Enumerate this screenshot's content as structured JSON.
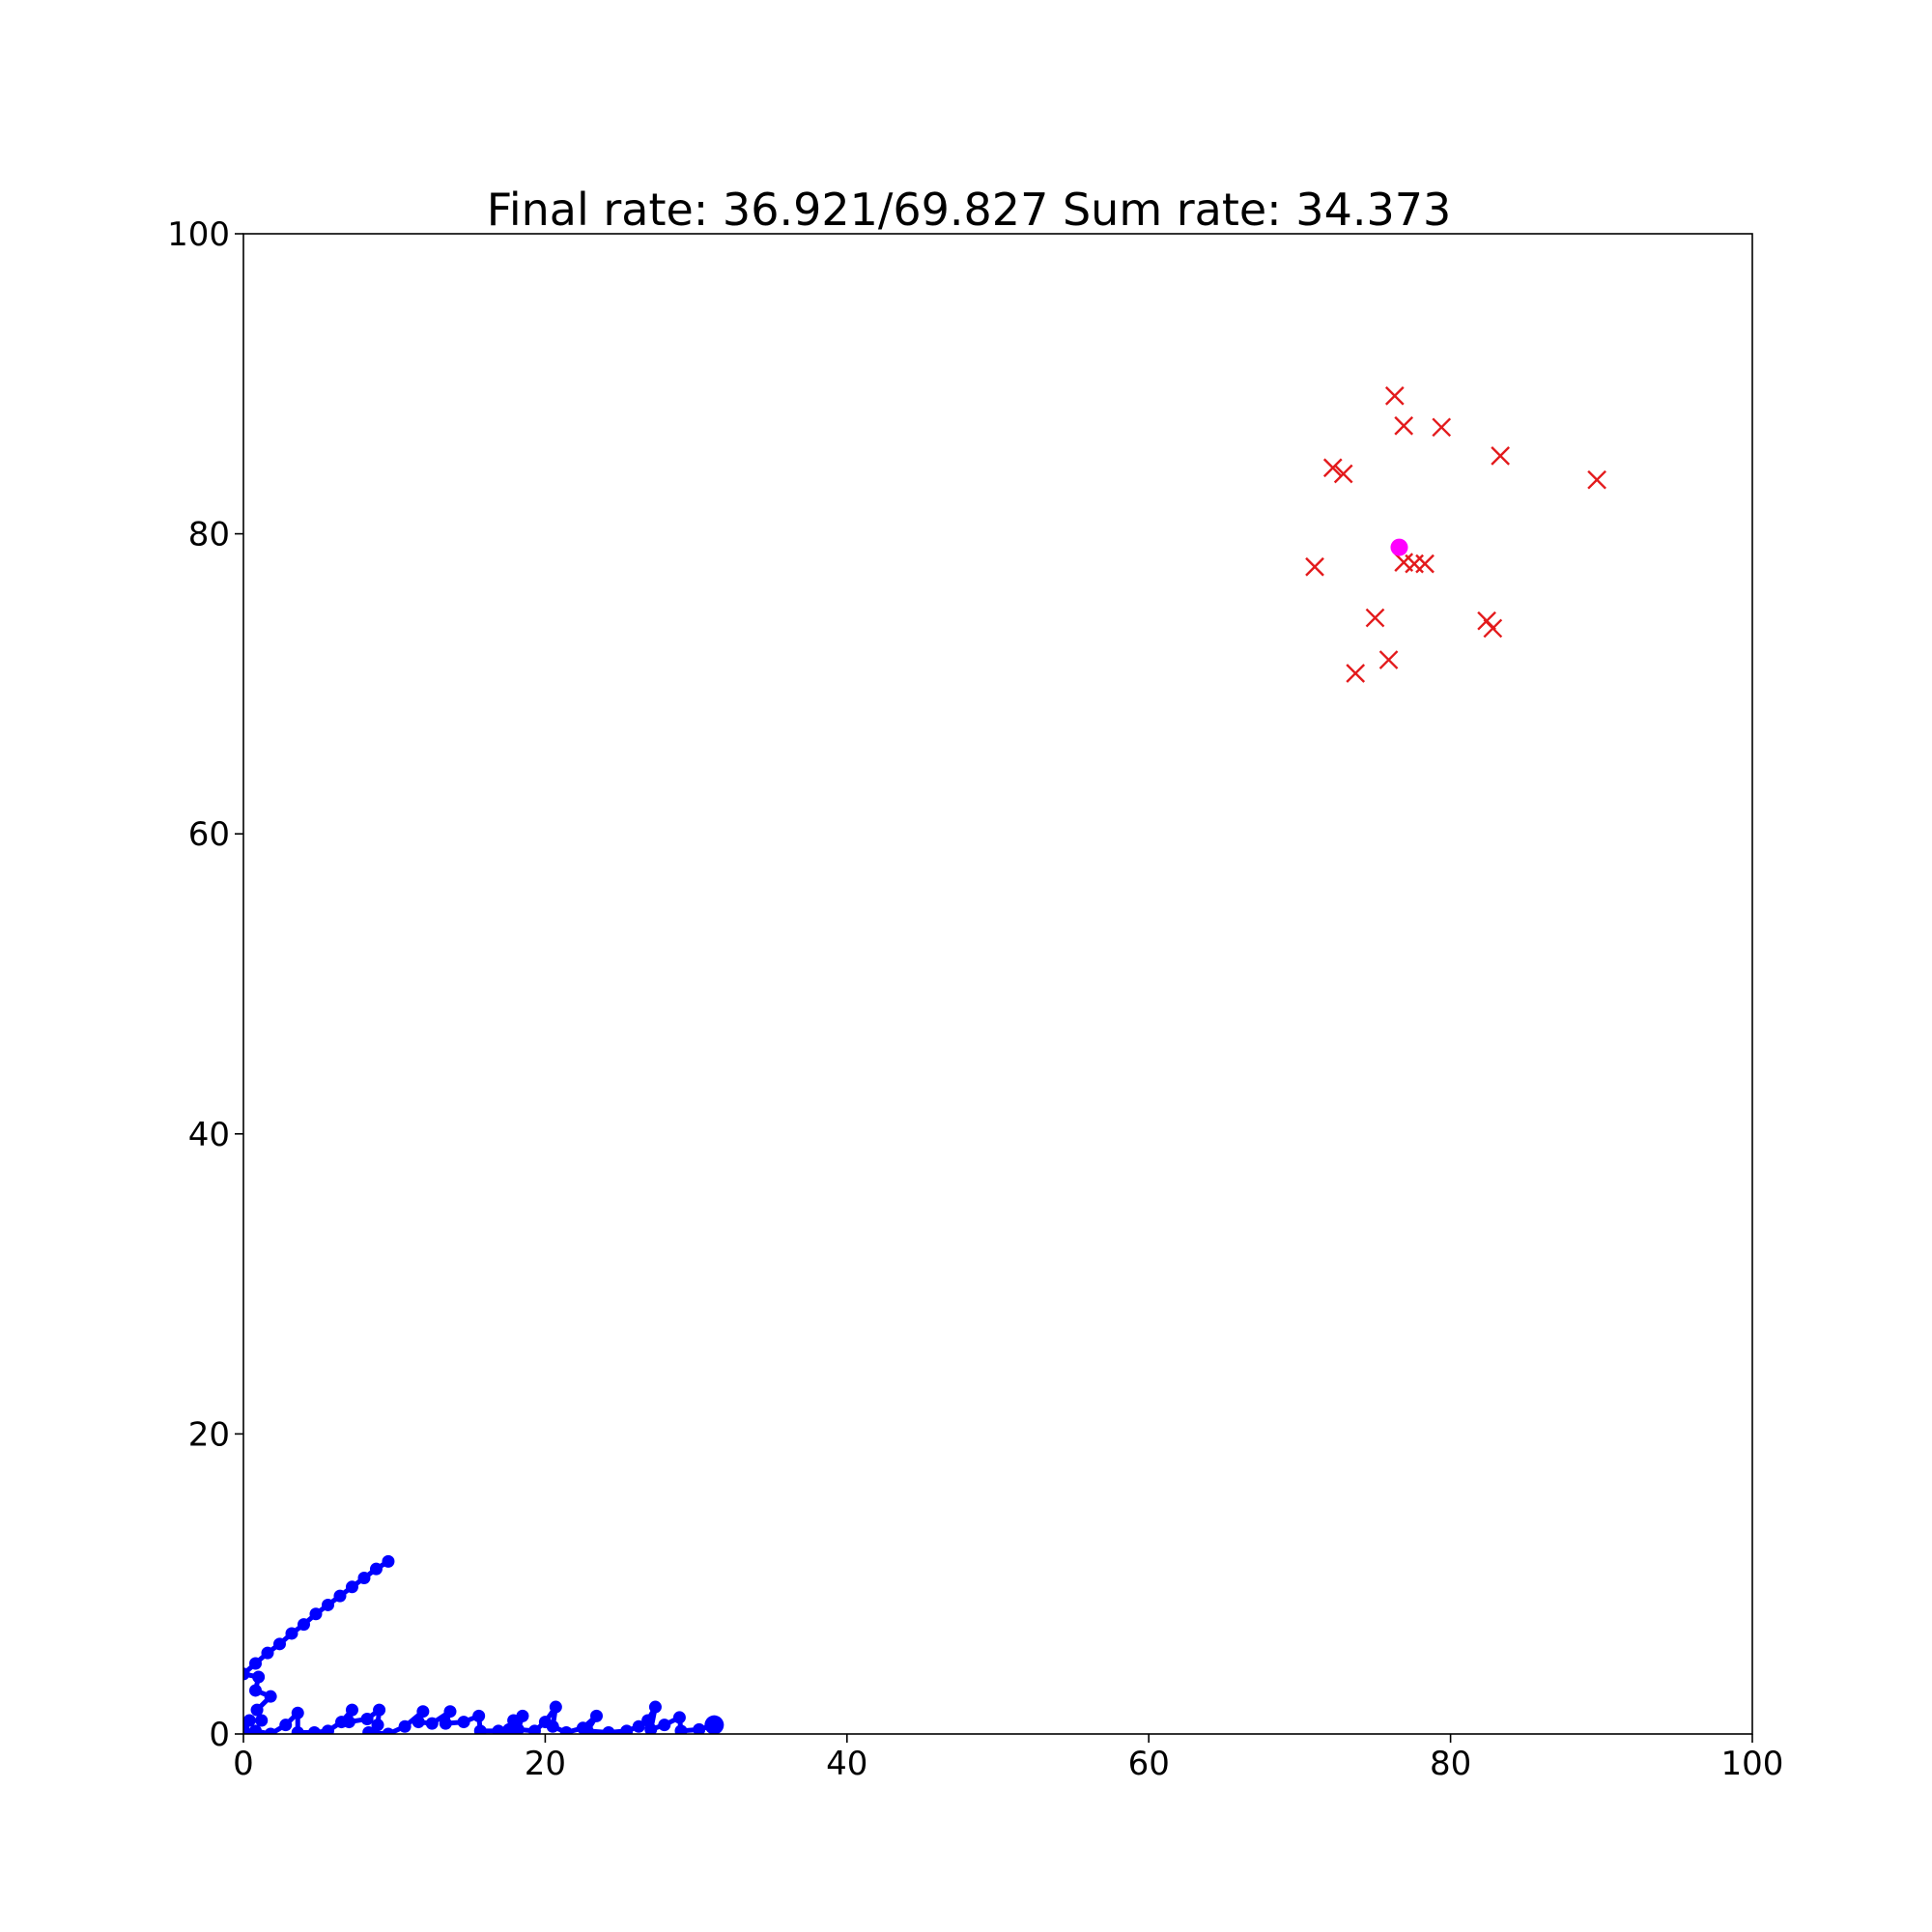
{
  "chart_data": {
    "type": "scatter",
    "title": "Final rate: 36.921/69.827    Sum rate: 34.373",
    "xlabel": "",
    "ylabel": "",
    "xlim": [
      0,
      100
    ],
    "ylim": [
      0,
      100
    ],
    "x_ticks": [
      "0",
      "20",
      "40",
      "60",
      "80",
      "100"
    ],
    "y_ticks": [
      "0",
      "20",
      "40",
      "60",
      "80",
      "100"
    ],
    "grid": false,
    "series": [
      {
        "marker": "x",
        "color": "#e31a1c",
        "points": [
          [
            76.3,
            89.2
          ],
          [
            76.9,
            87.2
          ],
          [
            79.4,
            87.1
          ],
          [
            83.3,
            85.2
          ],
          [
            72.2,
            84.4
          ],
          [
            72.9,
            84.0
          ],
          [
            89.7,
            83.6
          ],
          [
            71.0,
            77.8
          ],
          [
            76.9,
            78.1
          ],
          [
            77.6,
            78.0
          ],
          [
            78.3,
            78.0
          ],
          [
            75.0,
            74.4
          ],
          [
            82.4,
            74.2
          ],
          [
            82.8,
            73.7
          ],
          [
            75.9,
            71.6
          ],
          [
            73.7,
            70.7
          ]
        ]
      },
      {
        "marker": "circle",
        "color": "#ff00ff",
        "points": [
          [
            76.6,
            79.1
          ]
        ]
      },
      {
        "marker": "circle-line",
        "color": "#0000ff",
        "paths": [
          [
            [
              0.0,
              4.0
            ],
            [
              0.8,
              4.7
            ],
            [
              1.6,
              5.4
            ],
            [
              2.4,
              6.0
            ],
            [
              3.2,
              6.7
            ],
            [
              4.0,
              7.3
            ],
            [
              4.8,
              8.0
            ],
            [
              5.6,
              8.6
            ],
            [
              6.4,
              9.2
            ],
            [
              7.2,
              9.8
            ],
            [
              8.0,
              10.4
            ],
            [
              8.8,
              11.0
            ],
            [
              9.6,
              11.5
            ]
          ],
          [
            [
              0.0,
              4.0
            ],
            [
              1.0,
              3.8
            ],
            [
              0.8,
              2.9
            ],
            [
              1.8,
              2.5
            ],
            [
              0.9,
              1.6
            ],
            [
              1.2,
              0.9
            ],
            [
              0.4,
              0.9
            ],
            [
              0.0,
              0.3
            ]
          ],
          [
            [
              0.0,
              0.1
            ],
            [
              0.8,
              0.2
            ],
            [
              1.8,
              0.0
            ],
            [
              2.8,
              0.6
            ],
            [
              3.6,
              1.4
            ],
            [
              3.6,
              0.1
            ],
            [
              4.7,
              0.1
            ],
            [
              5.6,
              0.2
            ],
            [
              6.5,
              0.8
            ],
            [
              7.2,
              1.6
            ],
            [
              7.0,
              0.8
            ],
            [
              8.2,
              1.0
            ],
            [
              9.0,
              1.6
            ],
            [
              8.9,
              0.6
            ],
            [
              8.3,
              0.1
            ],
            [
              9.6,
              0.0
            ],
            [
              10.7,
              0.5
            ],
            [
              11.9,
              1.5
            ],
            [
              11.6,
              0.8
            ],
            [
              12.5,
              0.7
            ],
            [
              13.7,
              1.5
            ],
            [
              13.4,
              0.7
            ],
            [
              14.6,
              0.8
            ],
            [
              15.6,
              1.2
            ],
            [
              15.7,
              0.2
            ],
            [
              16.9,
              0.2
            ],
            [
              17.6,
              0.3
            ],
            [
              17.9,
              0.9
            ],
            [
              18.5,
              1.2
            ],
            [
              18.2,
              0.3
            ],
            [
              19.3,
              0.2
            ],
            [
              20.0,
              0.8
            ],
            [
              20.7,
              1.8
            ],
            [
              20.5,
              0.5
            ],
            [
              21.4,
              0.1
            ],
            [
              22.5,
              0.4
            ],
            [
              23.4,
              1.2
            ],
            [
              22.8,
              0.2
            ],
            [
              24.2,
              0.1
            ],
            [
              25.4,
              0.2
            ],
            [
              26.2,
              0.5
            ],
            [
              26.8,
              0.9
            ],
            [
              27.3,
              1.8
            ],
            [
              27.0,
              0.3
            ],
            [
              27.9,
              0.6
            ],
            [
              28.9,
              1.1
            ],
            [
              29.0,
              0.2
            ],
            [
              30.2,
              0.3
            ],
            [
              31.2,
              0.6
            ]
          ]
        ],
        "endpoint": [
          31.2,
          0.6
        ]
      }
    ]
  }
}
